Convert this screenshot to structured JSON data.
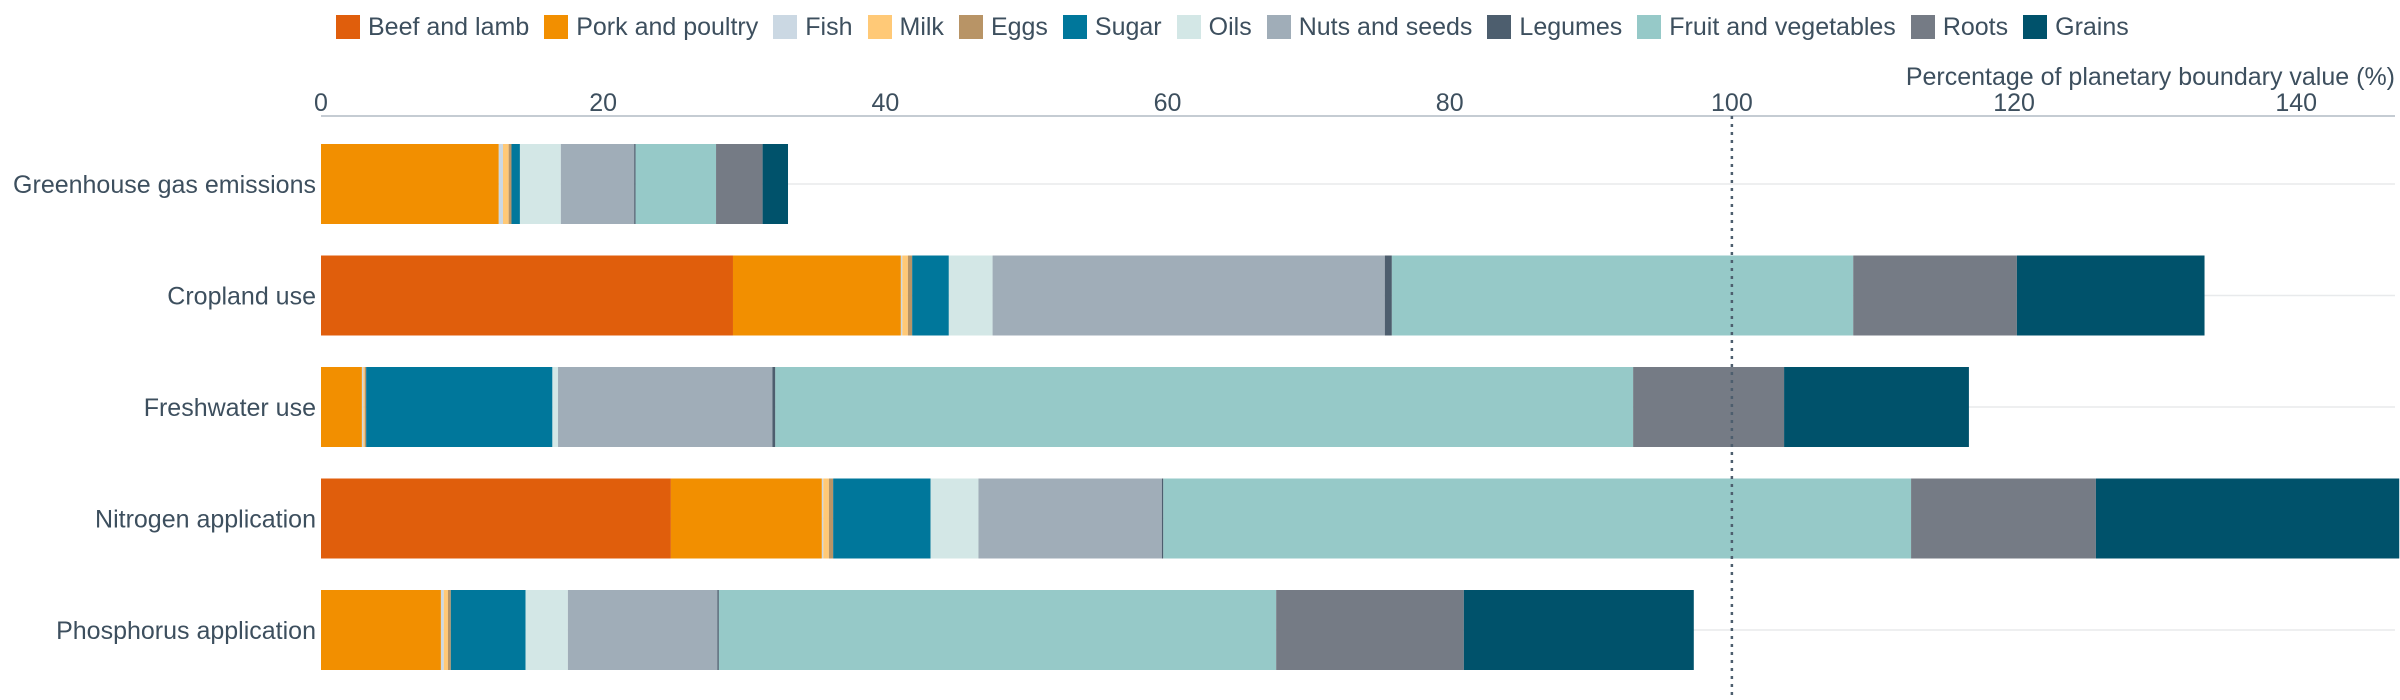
{
  "chart_data": {
    "type": "bar",
    "orientation": "horizontal",
    "stacked": true,
    "xlabel": "Percentage of planetary boundary value (%)",
    "xlim": [
      0,
      147
    ],
    "xticks": [
      0,
      20,
      40,
      60,
      80,
      100,
      120,
      140
    ],
    "reference_line": {
      "value": 100,
      "style": "dotted"
    },
    "legend_position": "top",
    "categories": [
      "Greenhouse gas emissions",
      "Cropland use",
      "Freshwater use",
      "Nitrogen application",
      "Phosphorus application"
    ],
    "series": [
      {
        "name": "Beef and lamb",
        "color": "#e05e0c",
        "values": [
          0,
          29.2,
          0,
          24.8,
          0
        ]
      },
      {
        "name": "Pork and poultry",
        "color": "#f28f00",
        "values": [
          12.6,
          11.9,
          2.9,
          10.7,
          8.5
        ]
      },
      {
        "name": "Fish",
        "color": "#cbd8e3",
        "values": [
          0.3,
          0.1,
          0.1,
          0.1,
          0.2
        ]
      },
      {
        "name": "Milk",
        "color": "#ffc977",
        "values": [
          0.4,
          0.4,
          0.1,
          0.4,
          0.3
        ]
      },
      {
        "name": "Eggs",
        "color": "#b89466",
        "values": [
          0.2,
          0.3,
          0.1,
          0.3,
          0.2
        ]
      },
      {
        "name": "Sugar",
        "color": "#00779b",
        "values": [
          0.6,
          2.6,
          13.2,
          6.9,
          5.3
        ]
      },
      {
        "name": "Oils",
        "color": "#d3e7e6",
        "values": [
          2.9,
          3.1,
          0.4,
          3.4,
          3.0
        ]
      },
      {
        "name": "Nuts and seeds",
        "color": "#a0adb8",
        "values": [
          5.2,
          27.8,
          15.2,
          13.0,
          10.6
        ]
      },
      {
        "name": "Legumes",
        "color": "#4d5e6e",
        "values": [
          0.1,
          0.5,
          0.2,
          0.1,
          0.1
        ]
      },
      {
        "name": "Fruit and vegetables",
        "color": "#96c9c8",
        "values": [
          5.7,
          32.7,
          60.8,
          53.0,
          39.5
        ]
      },
      {
        "name": "Roots",
        "color": "#757b85",
        "values": [
          3.3,
          11.6,
          10.7,
          13.1,
          13.3
        ]
      },
      {
        "name": "Grains",
        "color": "#00526b",
        "values": [
          1.8,
          13.3,
          13.1,
          21.5,
          16.3
        ]
      }
    ]
  }
}
